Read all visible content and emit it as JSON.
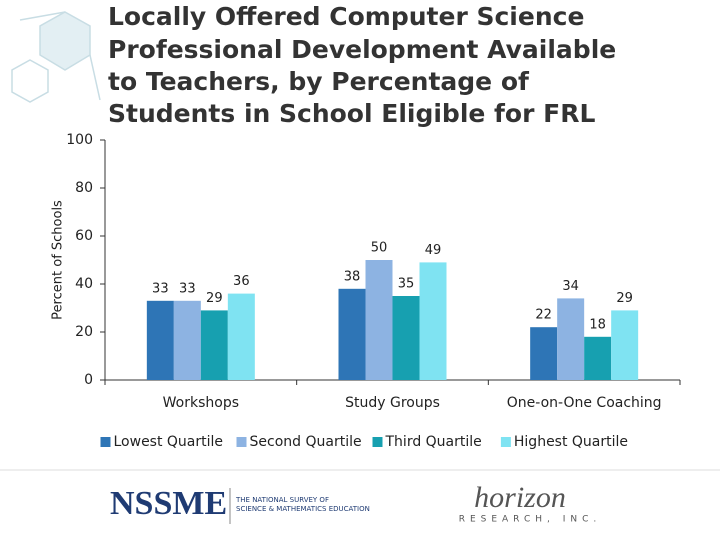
{
  "chart_data": {
    "type": "bar",
    "title": [
      "Locally Offered Computer Science",
      "Professional Development Available",
      "to Teachers, by Percentage of",
      "Students in School Eligible for FRL"
    ],
    "y_label": "Percent of Schools",
    "categories": [
      "Workshops",
      "Study Groups",
      "One-on-One Coaching"
    ],
    "series": [
      {
        "name": "Lowest Quartile",
        "color": "#2e75b6",
        "values": [
          33,
          38,
          22
        ]
      },
      {
        "name": "Second Quartile",
        "color": "#8db3e2",
        "values": [
          33,
          50,
          34
        ]
      },
      {
        "name": "Third Quartile",
        "color": "#17a0b0",
        "values": [
          29,
          35,
          18
        ]
      },
      {
        "name": "Highest Quartile",
        "color": "#7fe3f2",
        "values": [
          36,
          49,
          29
        ]
      }
    ],
    "ylim": [
      0,
      100
    ],
    "yticks": [
      0,
      20,
      40,
      60,
      80,
      100
    ],
    "grid": false,
    "legend": "bottom"
  },
  "footer": {
    "left_logo": "NSSME",
    "left_logo_text": [
      "THE NATIONAL SURVEY OF",
      "SCIENCE & MATHEMATICS EDUCATION"
    ],
    "right_logo": "horizon",
    "right_logo_text": "RESEARCH, INC."
  }
}
